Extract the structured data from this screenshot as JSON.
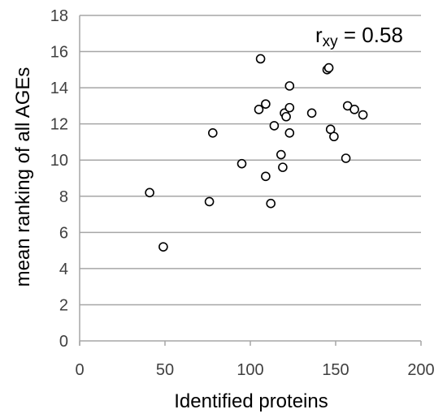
{
  "chart_data": {
    "type": "scatter",
    "xlabel": "Identified proteins",
    "ylabel": "mean ranking of all AGEs",
    "xlim": [
      0,
      200
    ],
    "ylim": [
      0,
      18
    ],
    "x_ticks": [
      0,
      50,
      100,
      150,
      200
    ],
    "y_ticks": [
      0,
      2,
      4,
      6,
      8,
      10,
      12,
      14,
      16,
      18
    ],
    "grid": "horizontal",
    "annotation": {
      "base": "r",
      "subscript": "xy",
      "rest": " = 0.58"
    },
    "marker": {
      "shape": "open-circle",
      "color": "#000000"
    },
    "points": [
      {
        "x": 41,
        "y": 8.2
      },
      {
        "x": 49,
        "y": 5.2
      },
      {
        "x": 76,
        "y": 7.7
      },
      {
        "x": 78,
        "y": 11.5
      },
      {
        "x": 95,
        "y": 9.8
      },
      {
        "x": 105,
        "y": 12.8
      },
      {
        "x": 106,
        "y": 15.6
      },
      {
        "x": 109,
        "y": 13.1
      },
      {
        "x": 109,
        "y": 9.1
      },
      {
        "x": 112,
        "y": 7.6
      },
      {
        "x": 114,
        "y": 11.9
      },
      {
        "x": 118,
        "y": 10.3
      },
      {
        "x": 119,
        "y": 9.6
      },
      {
        "x": 120,
        "y": 12.6
      },
      {
        "x": 121,
        "y": 12.4
      },
      {
        "x": 123,
        "y": 14.1
      },
      {
        "x": 123,
        "y": 12.9
      },
      {
        "x": 123,
        "y": 11.5
      },
      {
        "x": 136,
        "y": 12.6
      },
      {
        "x": 145,
        "y": 15.0
      },
      {
        "x": 146,
        "y": 15.1
      },
      {
        "x": 147,
        "y": 11.7
      },
      {
        "x": 149,
        "y": 11.3
      },
      {
        "x": 156,
        "y": 10.1
      },
      {
        "x": 157,
        "y": 13.0
      },
      {
        "x": 161,
        "y": 12.8
      },
      {
        "x": 166,
        "y": 12.5
      }
    ]
  }
}
